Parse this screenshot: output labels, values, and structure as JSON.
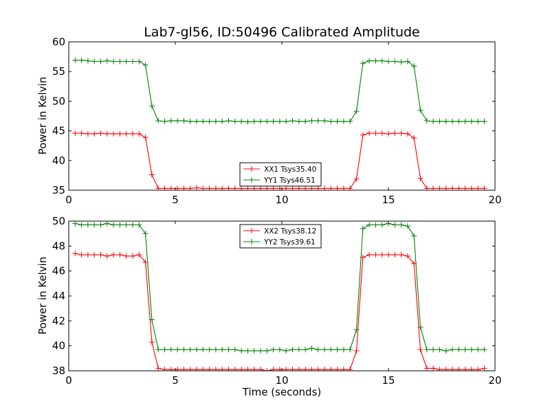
{
  "title": "Lab7-gl56, ID:50496 Calibrated Amplitude",
  "xlabel": "Time (seconds)",
  "ylabel_top": "Power in Kelvin",
  "ylabel_bottom": "Power in Kelvin",
  "colors": {
    "series1": "#ff0000",
    "series2": "#008000"
  },
  "chart_data": [
    {
      "type": "line",
      "xlim": [
        0,
        20
      ],
      "ylim": [
        35,
        60
      ],
      "xticks": [
        0,
        5,
        10,
        15,
        20
      ],
      "yticks": [
        35,
        40,
        45,
        50,
        55,
        60
      ],
      "legend_position": "lower-center",
      "x": [
        0.3,
        0.6,
        0.9,
        1.2,
        1.5,
        1.8,
        2.1,
        2.4,
        2.7,
        3.0,
        3.3,
        3.6,
        3.9,
        4.2,
        4.5,
        4.8,
        5.1,
        5.4,
        5.7,
        6.0,
        6.3,
        6.6,
        6.9,
        7.2,
        7.5,
        7.8,
        8.1,
        8.4,
        8.7,
        9.0,
        9.3,
        9.6,
        9.9,
        10.2,
        10.5,
        10.8,
        11.1,
        11.4,
        11.7,
        12.0,
        12.3,
        12.6,
        12.9,
        13.2,
        13.5,
        13.8,
        14.1,
        14.4,
        14.7,
        15.0,
        15.3,
        15.6,
        15.9,
        16.2,
        16.5,
        16.8,
        17.1,
        17.4,
        17.7,
        18.0,
        18.3,
        18.6,
        18.9,
        19.2,
        19.5
      ],
      "series": [
        {
          "name": "XX1 Tsys35.40",
          "color": "#ff0000",
          "values": [
            44.6,
            44.6,
            44.5,
            44.5,
            44.6,
            44.5,
            44.5,
            44.5,
            44.5,
            44.5,
            44.5,
            43.9,
            37.6,
            35.3,
            35.3,
            35.3,
            35.3,
            35.3,
            35.3,
            35.4,
            35.3,
            35.3,
            35.3,
            35.3,
            35.3,
            35.3,
            35.3,
            35.3,
            35.3,
            35.3,
            35.3,
            35.3,
            35.3,
            35.3,
            35.3,
            35.3,
            35.3,
            35.3,
            35.3,
            35.3,
            35.3,
            35.3,
            35.3,
            35.3,
            36.9,
            44.3,
            44.6,
            44.6,
            44.6,
            44.5,
            44.6,
            44.6,
            44.5,
            43.8,
            37.0,
            35.3,
            35.3,
            35.3,
            35.3,
            35.3,
            35.3,
            35.3,
            35.3,
            35.3,
            35.3
          ]
        },
        {
          "name": "YY1 Tsys46.51",
          "color": "#008000",
          "values": [
            56.9,
            56.9,
            56.8,
            56.7,
            56.7,
            56.8,
            56.7,
            56.7,
            56.7,
            56.7,
            56.7,
            56.1,
            49.2,
            46.7,
            46.6,
            46.7,
            46.7,
            46.7,
            46.6,
            46.6,
            46.6,
            46.6,
            46.6,
            46.6,
            46.7,
            46.6,
            46.6,
            46.5,
            46.6,
            46.6,
            46.6,
            46.6,
            46.6,
            46.6,
            46.7,
            46.6,
            46.6,
            46.7,
            46.7,
            46.7,
            46.6,
            46.6,
            46.6,
            46.6,
            48.3,
            56.4,
            56.8,
            56.8,
            56.8,
            56.7,
            56.7,
            56.6,
            56.7,
            55.9,
            48.5,
            46.7,
            46.6,
            46.6,
            46.6,
            46.6,
            46.6,
            46.6,
            46.6,
            46.6,
            46.6
          ]
        }
      ]
    },
    {
      "type": "line",
      "xlim": [
        0,
        20
      ],
      "ylim": [
        38,
        50
      ],
      "xticks": [
        0,
        5,
        10,
        15,
        20
      ],
      "yticks": [
        38,
        40,
        42,
        44,
        46,
        48,
        50
      ],
      "legend_position": "upper-center",
      "x": [
        0.3,
        0.6,
        0.9,
        1.2,
        1.5,
        1.8,
        2.1,
        2.4,
        2.7,
        3.0,
        3.3,
        3.6,
        3.9,
        4.2,
        4.5,
        4.8,
        5.1,
        5.4,
        5.7,
        6.0,
        6.3,
        6.6,
        6.9,
        7.2,
        7.5,
        7.8,
        8.1,
        8.4,
        8.7,
        9.0,
        9.3,
        9.6,
        9.9,
        10.2,
        10.5,
        10.8,
        11.1,
        11.4,
        11.7,
        12.0,
        12.3,
        12.6,
        12.9,
        13.2,
        13.5,
        13.8,
        14.1,
        14.4,
        14.7,
        15.0,
        15.3,
        15.6,
        15.9,
        16.2,
        16.5,
        16.8,
        17.1,
        17.4,
        17.7,
        18.0,
        18.3,
        18.6,
        18.9,
        19.2,
        19.5
      ],
      "series": [
        {
          "name": "XX2 Tsys38.12",
          "color": "#ff0000",
          "values": [
            47.4,
            47.3,
            47.3,
            47.3,
            47.3,
            47.2,
            47.3,
            47.3,
            47.2,
            47.2,
            47.3,
            46.7,
            40.3,
            38.2,
            38.1,
            38.1,
            38.1,
            38.1,
            38.1,
            38.1,
            38.1,
            38.1,
            38.1,
            38.1,
            38.1,
            38.1,
            38.1,
            38.1,
            38.1,
            38.1,
            38.0,
            38.1,
            38.1,
            38.1,
            38.1,
            38.1,
            38.1,
            38.1,
            38.1,
            38.1,
            38.1,
            38.1,
            38.1,
            38.1,
            39.6,
            47.1,
            47.3,
            47.3,
            47.3,
            47.3,
            47.3,
            47.3,
            47.2,
            46.6,
            39.7,
            38.2,
            38.2,
            38.1,
            38.1,
            38.1,
            38.1,
            38.1,
            38.1,
            38.1,
            38.2
          ]
        },
        {
          "name": "YY2 Tsys39.61",
          "color": "#008000",
          "values": [
            49.8,
            49.7,
            49.7,
            49.7,
            49.7,
            49.8,
            49.7,
            49.7,
            49.7,
            49.7,
            49.7,
            49.0,
            42.1,
            39.7,
            39.7,
            39.7,
            39.7,
            39.7,
            39.7,
            39.7,
            39.7,
            39.7,
            39.7,
            39.7,
            39.7,
            39.7,
            39.6,
            39.6,
            39.6,
            39.6,
            39.6,
            39.7,
            39.7,
            39.6,
            39.7,
            39.7,
            39.7,
            39.8,
            39.7,
            39.7,
            39.7,
            39.7,
            39.7,
            39.7,
            41.3,
            49.4,
            49.7,
            49.7,
            49.7,
            49.8,
            49.7,
            49.7,
            49.6,
            48.8,
            41.5,
            39.7,
            39.7,
            39.7,
            39.6,
            39.7,
            39.7,
            39.7,
            39.7,
            39.7,
            39.7
          ]
        }
      ]
    }
  ]
}
